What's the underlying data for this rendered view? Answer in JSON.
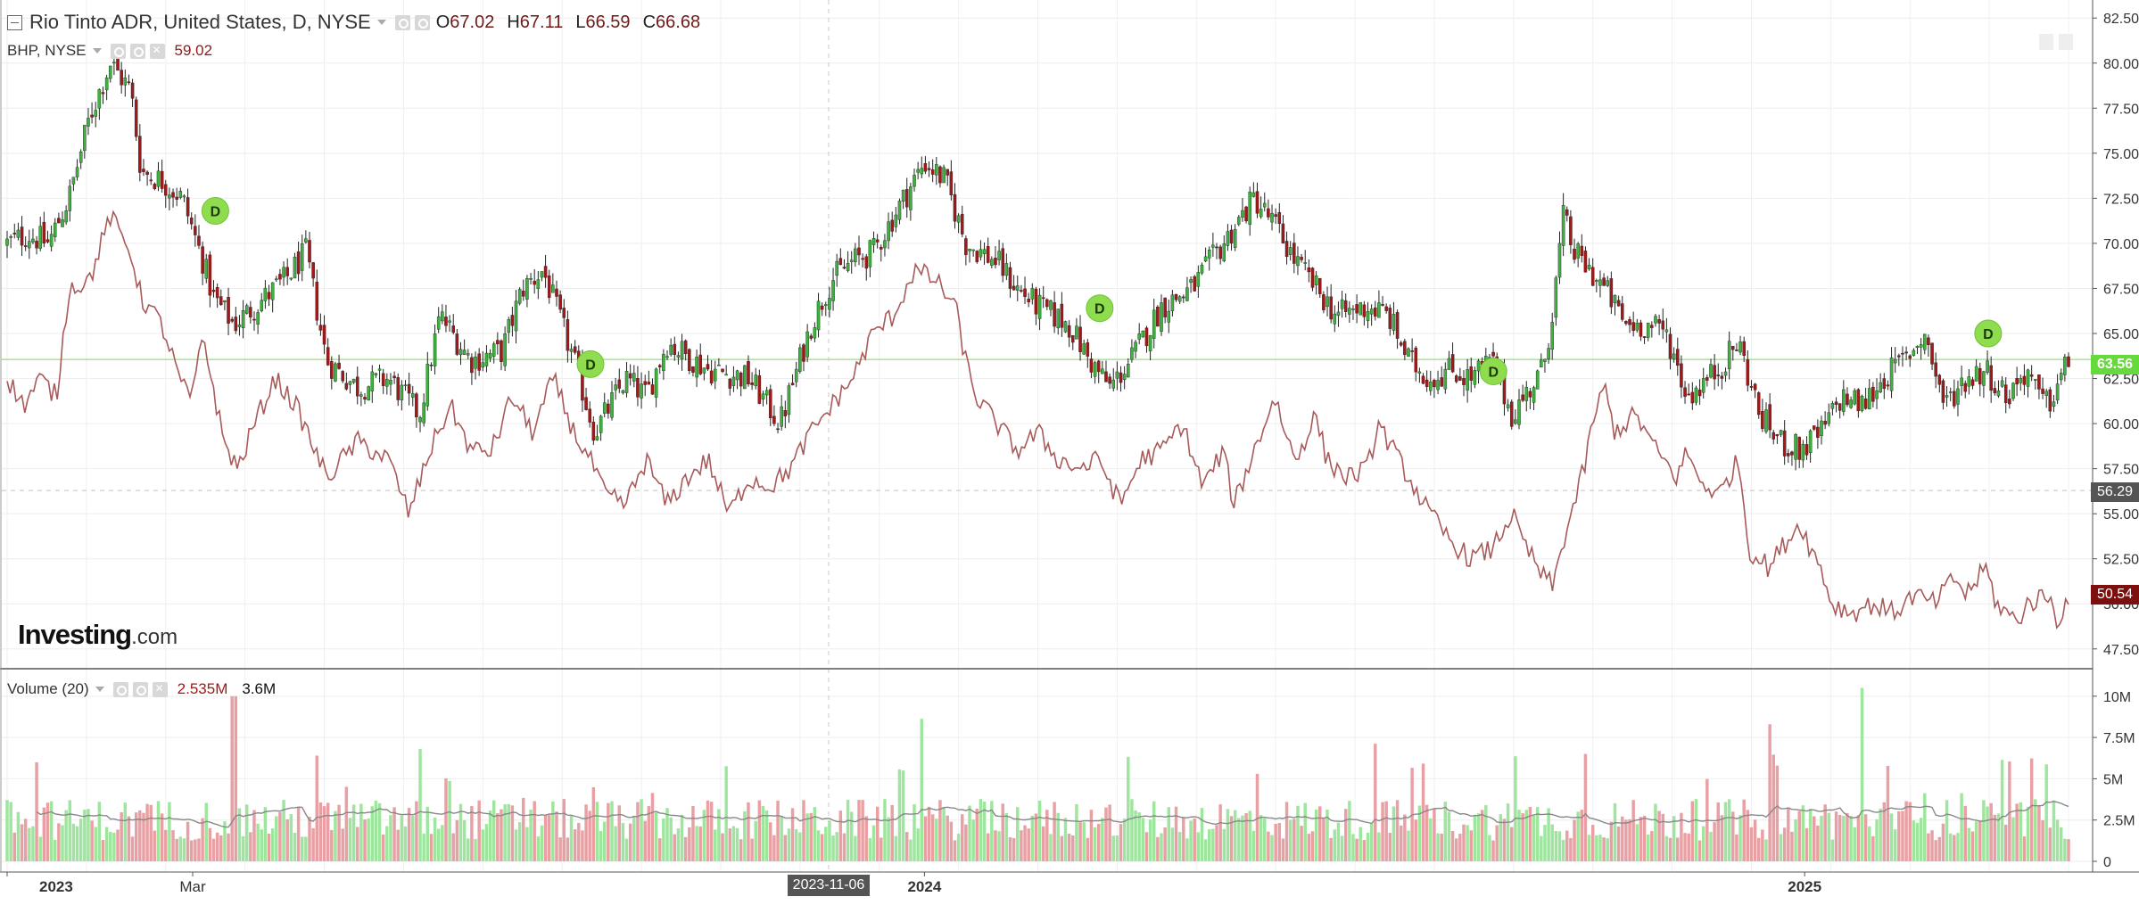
{
  "colors": {
    "up": "#3eb23e",
    "down": "#a31818",
    "compare_line": "#a85a5a",
    "current_price_line": "#7ed957",
    "vol_up": "#9ee69e",
    "vol_down": "#e8a0a4",
    "vol_ma": "#888888",
    "badge": "#8fdc4f"
  },
  "main_header": {
    "symbol": "Rio Tinto ADR, United States, D, NYSE",
    "open_label": "O",
    "open_value": "67.02",
    "high_label": "H",
    "high_value": "67.11",
    "low_label": "L",
    "low_value": "66.59",
    "close_label": "C",
    "close_value": "66.68"
  },
  "compare_header": {
    "symbol": "BHP, NYSE",
    "value": "59.02"
  },
  "volume_header": {
    "label": "Volume (20)",
    "value": "2.535M",
    "ma_value": "3.6M"
  },
  "logo": {
    "main": "Investing",
    "suffix": ".com"
  },
  "price_tags": {
    "current": "63.56",
    "crosshair": "56.29",
    "compare": "50.54"
  },
  "crosshair_date": "2023-11-06",
  "chart_data": [
    {
      "type": "candlestick",
      "title": "Rio Tinto ADR, United States, D, NYSE",
      "ylim": [
        46.5,
        83.5
      ],
      "y_ticks": [
        "47.50",
        "50.00",
        "52.50",
        "55.00",
        "57.50",
        "60.00",
        "62.50",
        "65.00",
        "67.50",
        "70.00",
        "72.50",
        "75.00",
        "77.50",
        "80.00",
        "82.50"
      ],
      "x_tick_labels": [
        {
          "t": 0.0,
          "label": "2023"
        },
        {
          "t": 0.09,
          "label": "Mar"
        },
        {
          "t": 0.445,
          "label": "2024"
        },
        {
          "t": 0.872,
          "label": "2025"
        }
      ],
      "close_anchors": [
        [
          0.0,
          70.0
        ],
        [
          0.01,
          70.5
        ],
        [
          0.02,
          70.0
        ],
        [
          0.03,
          72.5
        ],
        [
          0.04,
          77.0
        ],
        [
          0.05,
          80.0
        ],
        [
          0.06,
          78.5
        ],
        [
          0.065,
          74.0
        ],
        [
          0.075,
          73.5
        ],
        [
          0.085,
          72.5
        ],
        [
          0.095,
          69.0
        ],
        [
          0.1,
          67.0
        ],
        [
          0.11,
          65.5
        ],
        [
          0.12,
          66.5
        ],
        [
          0.135,
          68.0
        ],
        [
          0.145,
          69.5
        ],
        [
          0.155,
          63.5
        ],
        [
          0.17,
          62.0
        ],
        [
          0.185,
          62.5
        ],
        [
          0.2,
          60.5
        ],
        [
          0.21,
          66.0
        ],
        [
          0.225,
          63.5
        ],
        [
          0.24,
          64.0
        ],
        [
          0.25,
          67.5
        ],
        [
          0.26,
          68.5
        ],
        [
          0.275,
          63.5
        ],
        [
          0.285,
          59.5
        ],
        [
          0.3,
          62.5
        ],
        [
          0.31,
          61.5
        ],
        [
          0.32,
          64.5
        ],
        [
          0.34,
          63.0
        ],
        [
          0.36,
          62.5
        ],
        [
          0.375,
          60.0
        ],
        [
          0.39,
          65.5
        ],
        [
          0.4,
          68.0
        ],
        [
          0.41,
          69.0
        ],
        [
          0.42,
          69.5
        ],
        [
          0.43,
          71.5
        ],
        [
          0.445,
          74.5
        ],
        [
          0.455,
          73.5
        ],
        [
          0.465,
          70.0
        ],
        [
          0.48,
          69.0
        ],
        [
          0.49,
          67.5
        ],
        [
          0.5,
          66.5
        ],
        [
          0.515,
          65.5
        ],
        [
          0.525,
          63.5
        ],
        [
          0.535,
          62.0
        ],
        [
          0.545,
          63.5
        ],
        [
          0.56,
          66.5
        ],
        [
          0.575,
          67.5
        ],
        [
          0.59,
          70.0
        ],
        [
          0.605,
          72.5
        ],
        [
          0.615,
          71.0
        ],
        [
          0.625,
          69.0
        ],
        [
          0.635,
          67.5
        ],
        [
          0.645,
          66.0
        ],
        [
          0.66,
          66.5
        ],
        [
          0.67,
          66.0
        ],
        [
          0.68,
          63.5
        ],
        [
          0.69,
          62.5
        ],
        [
          0.7,
          63.0
        ],
        [
          0.71,
          62.5
        ],
        [
          0.72,
          63.5
        ],
        [
          0.73,
          60.5
        ],
        [
          0.745,
          63.0
        ],
        [
          0.75,
          66.5
        ],
        [
          0.755,
          71.5
        ],
        [
          0.76,
          69.5
        ],
        [
          0.775,
          67.5
        ],
        [
          0.785,
          65.5
        ],
        [
          0.795,
          65.5
        ],
        [
          0.805,
          65.0
        ],
        [
          0.815,
          61.5
        ],
        [
          0.83,
          63.0
        ],
        [
          0.84,
          64.5
        ],
        [
          0.85,
          60.5
        ],
        [
          0.86,
          59.0
        ],
        [
          0.87,
          58.5
        ],
        [
          0.88,
          59.5
        ],
        [
          0.89,
          61.5
        ],
        [
          0.9,
          61.0
        ],
        [
          0.91,
          62.5
        ],
        [
          0.92,
          63.5
        ],
        [
          0.93,
          65.0
        ],
        [
          0.94,
          61.0
        ],
        [
          0.95,
          62.5
        ],
        [
          0.96,
          63.0
        ],
        [
          0.97,
          61.5
        ],
        [
          0.98,
          63.0
        ],
        [
          0.985,
          61.5
        ],
        [
          0.99,
          61.0
        ],
        [
          1.0,
          63.5
        ]
      ],
      "dividend_markers": [
        {
          "t": 0.101,
          "price": 71.8,
          "label": "D"
        },
        {
          "t": 0.283,
          "price": 63.3,
          "label": "D"
        },
        {
          "t": 0.53,
          "price": 66.4,
          "label": "D"
        },
        {
          "t": 0.721,
          "price": 62.9,
          "label": "D"
        },
        {
          "t": 0.961,
          "price": 65.0,
          "label": "D"
        }
      ],
      "last_price": 63.56,
      "crosshair_price": 56.29
    },
    {
      "type": "line",
      "title": "BHP, NYSE",
      "series_anchors": [
        [
          0.0,
          62.5
        ],
        [
          0.008,
          61.0
        ],
        [
          0.016,
          62.5
        ],
        [
          0.024,
          61.5
        ],
        [
          0.03,
          67.5
        ],
        [
          0.04,
          68.0
        ],
        [
          0.05,
          71.5
        ],
        [
          0.06,
          69.5
        ],
        [
          0.065,
          67.0
        ],
        [
          0.075,
          65.5
        ],
        [
          0.085,
          62.0
        ],
        [
          0.09,
          61.5
        ],
        [
          0.095,
          65.0
        ],
        [
          0.105,
          59.0
        ],
        [
          0.112,
          57.5
        ],
        [
          0.12,
          60.0
        ],
        [
          0.13,
          62.5
        ],
        [
          0.14,
          61.0
        ],
        [
          0.155,
          57.0
        ],
        [
          0.17,
          59.0
        ],
        [
          0.185,
          58.0
        ],
        [
          0.195,
          55.0
        ],
        [
          0.205,
          58.5
        ],
        [
          0.215,
          61.0
        ],
        [
          0.225,
          58.5
        ],
        [
          0.235,
          58.5
        ],
        [
          0.245,
          61.5
        ],
        [
          0.255,
          59.5
        ],
        [
          0.265,
          62.5
        ],
        [
          0.275,
          59.5
        ],
        [
          0.285,
          57.5
        ],
        [
          0.29,
          56.0
        ],
        [
          0.3,
          55.5
        ],
        [
          0.31,
          58.0
        ],
        [
          0.32,
          55.5
        ],
        [
          0.33,
          57.0
        ],
        [
          0.34,
          58.0
        ],
        [
          0.35,
          55.0
        ],
        [
          0.36,
          57.0
        ],
        [
          0.37,
          56.5
        ],
        [
          0.38,
          57.5
        ],
        [
          0.39,
          59.5
        ],
        [
          0.4,
          61.0
        ],
        [
          0.41,
          62.5
        ],
        [
          0.42,
          65.0
        ],
        [
          0.43,
          66.0
        ],
        [
          0.44,
          68.5
        ],
        [
          0.45,
          68.0
        ],
        [
          0.46,
          66.5
        ],
        [
          0.465,
          63.5
        ],
        [
          0.47,
          61.5
        ],
        [
          0.48,
          60.0
        ],
        [
          0.49,
          58.5
        ],
        [
          0.5,
          59.5
        ],
        [
          0.51,
          58.0
        ],
        [
          0.52,
          57.5
        ],
        [
          0.53,
          58.0
        ],
        [
          0.54,
          55.5
        ],
        [
          0.55,
          58.0
        ],
        [
          0.56,
          58.5
        ],
        [
          0.57,
          60.0
        ],
        [
          0.58,
          56.5
        ],
        [
          0.59,
          58.5
        ],
        [
          0.595,
          55.5
        ],
        [
          0.6,
          57.0
        ],
        [
          0.61,
          60.0
        ],
        [
          0.615,
          61.5
        ],
        [
          0.62,
          59.5
        ],
        [
          0.625,
          58.0
        ],
        [
          0.635,
          60.5
        ],
        [
          0.64,
          58.0
        ],
        [
          0.65,
          57.0
        ],
        [
          0.66,
          57.5
        ],
        [
          0.665,
          60.0
        ],
        [
          0.67,
          59.0
        ],
        [
          0.68,
          57.0
        ],
        [
          0.69,
          55.0
        ],
        [
          0.7,
          53.5
        ],
        [
          0.71,
          52.5
        ],
        [
          0.72,
          53.0
        ],
        [
          0.73,
          55.0
        ],
        [
          0.735,
          53.5
        ],
        [
          0.745,
          51.5
        ],
        [
          0.75,
          51.0
        ],
        [
          0.755,
          53.5
        ],
        [
          0.765,
          57.5
        ],
        [
          0.77,
          60.5
        ],
        [
          0.775,
          62.0
        ],
        [
          0.78,
          59.5
        ],
        [
          0.79,
          60.5
        ],
        [
          0.8,
          58.5
        ],
        [
          0.81,
          57.0
        ],
        [
          0.815,
          58.5
        ],
        [
          0.82,
          57.0
        ],
        [
          0.83,
          56.0
        ],
        [
          0.84,
          58.0
        ],
        [
          0.845,
          53.0
        ],
        [
          0.855,
          52.0
        ],
        [
          0.86,
          53.0
        ],
        [
          0.87,
          54.5
        ],
        [
          0.875,
          53.0
        ],
        [
          0.88,
          52.0
        ],
        [
          0.885,
          50.0
        ],
        [
          0.895,
          49.5
        ],
        [
          0.905,
          50.0
        ],
        [
          0.915,
          49.5
        ],
        [
          0.925,
          50.5
        ],
        [
          0.935,
          50.0
        ],
        [
          0.945,
          51.5
        ],
        [
          0.95,
          50.5
        ],
        [
          0.96,
          52.0
        ],
        [
          0.965,
          50.0
        ],
        [
          0.975,
          49.0
        ],
        [
          0.98,
          50.0
        ],
        [
          0.99,
          50.5
        ],
        [
          0.995,
          49.0
        ],
        [
          1.0,
          50.5
        ]
      ],
      "last_value": 50.54
    },
    {
      "type": "bar",
      "title": "Volume (20)",
      "ylim": [
        0,
        10800000
      ],
      "y_ticks": [
        "0",
        "2.5M",
        "5M",
        "7.5M",
        "10M"
      ],
      "typical_volume": 2800000,
      "spikes": [
        {
          "t": 0.11,
          "value": 10000000
        },
        {
          "t": 0.2,
          "value": 6800000
        },
        {
          "t": 0.9,
          "value": 10500000
        },
        {
          "t": 0.855,
          "value": 8300000
        },
        {
          "t": 0.765,
          "value": 6500000
        },
        {
          "t": 0.435,
          "value": 5500000
        },
        {
          "t": 0.15,
          "value": 6400000
        }
      ],
      "ma_period": 20
    }
  ]
}
